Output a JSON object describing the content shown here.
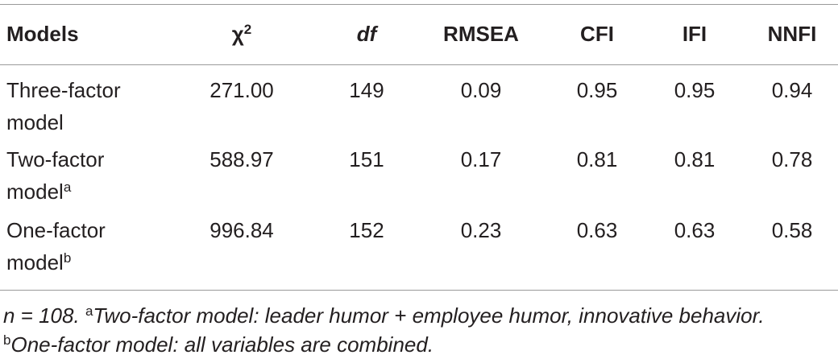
{
  "table": {
    "header": [
      {
        "text": "Models"
      },
      {
        "text": "χ",
        "sup": "2"
      },
      {
        "text": "df",
        "italic": true
      },
      {
        "text": "RMSEA"
      },
      {
        "text": "CFI"
      },
      {
        "text": "IFI"
      },
      {
        "text": "NNFI"
      }
    ],
    "rows": [
      {
        "model": "Three-factor model",
        "values": [
          "271.00",
          "149",
          "0.09",
          "0.95",
          "0.95",
          "0.94"
        ]
      },
      {
        "model": "Two-factor model",
        "note": "a",
        "values": [
          "588.97",
          "151",
          "0.17",
          "0.81",
          "0.81",
          "0.78"
        ]
      },
      {
        "model": "One-factor model",
        "note": "b",
        "values": [
          "996.84",
          "152",
          "0.23",
          "0.63",
          "0.63",
          "0.58"
        ]
      }
    ],
    "footnote": {
      "n": "n = 108.",
      "notes": [
        {
          "mark": "a",
          "text": "Two-factor model: leader humor + employee humor, innovative behavior."
        },
        {
          "mark": "b",
          "text": "One-factor model: all variables are combined."
        }
      ]
    }
  }
}
